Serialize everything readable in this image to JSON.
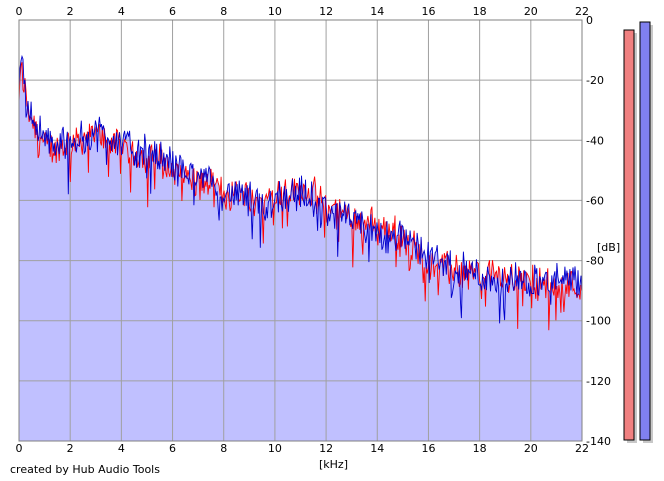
{
  "footer_text": "created by Hub Audio Tools",
  "chart_data": {
    "type": "line",
    "title": "",
    "xlabel": "[kHz]",
    "ylabel": "[dB]",
    "xlim": [
      0,
      22
    ],
    "ylim": [
      -140,
      0
    ],
    "x_ticks": [
      "0",
      "2",
      "4",
      "6",
      "8",
      "10",
      "12",
      "14",
      "16",
      "18",
      "20",
      "22"
    ],
    "y_ticks": [
      "0",
      "-20",
      "-40",
      "-60",
      "-80",
      "-100",
      "-120",
      "-140"
    ],
    "grid": true,
    "fill_color": "#c0c0ff",
    "series": [
      {
        "color": "#ff0000",
        "x": [
          0,
          0.1,
          0.2,
          0.3,
          0.5,
          0.7,
          1,
          1.5,
          2,
          2.5,
          3,
          3.5,
          4,
          4.5,
          5,
          5.5,
          6,
          6.5,
          7,
          7.5,
          8,
          8.5,
          9,
          9.5,
          10,
          10.5,
          11,
          11.5,
          12,
          12.5,
          13,
          13.5,
          14,
          14.5,
          15,
          15.5,
          16,
          16.5,
          17,
          17.5,
          18,
          18.5,
          19,
          19.5,
          20,
          20.5,
          21,
          21.5,
          22
        ],
        "y": [
          -25,
          -16,
          -22,
          -27,
          -33,
          -36,
          -42,
          -43,
          -41,
          -39,
          -38,
          -40,
          -42,
          -44,
          -45,
          -47,
          -50,
          -52,
          -54,
          -55,
          -58,
          -57,
          -59,
          -60,
          -58,
          -57,
          -56,
          -58,
          -62,
          -64,
          -66,
          -67,
          -69,
          -70,
          -73,
          -76,
          -79,
          -82,
          -83,
          -84,
          -84,
          -85,
          -86,
          -86,
          -87,
          -88,
          -88,
          -88,
          -89
        ]
      },
      {
        "color": "#0000cc",
        "x": [
          0,
          0.1,
          0.2,
          0.3,
          0.5,
          0.7,
          1,
          1.5,
          2,
          2.5,
          3,
          3.5,
          4,
          4.5,
          5,
          5.5,
          6,
          6.5,
          7,
          7.5,
          8,
          8.5,
          9,
          9.5,
          10,
          10.5,
          11,
          11.5,
          12,
          12.5,
          13,
          13.5,
          14,
          14.5,
          15,
          15.5,
          16,
          16.5,
          17,
          17.5,
          18,
          18.5,
          19,
          19.5,
          20,
          20.5,
          21,
          21.5,
          22
        ],
        "y": [
          -22,
          -13,
          -18,
          -25,
          -32,
          -35,
          -40,
          -42,
          -40,
          -38,
          -37,
          -38,
          -40,
          -43,
          -44,
          -46,
          -48,
          -50,
          -52,
          -54,
          -57,
          -58,
          -60,
          -63,
          -59,
          -58,
          -58,
          -60,
          -63,
          -65,
          -67,
          -69,
          -71,
          -71,
          -72,
          -75,
          -78,
          -81,
          -82,
          -84,
          -85,
          -86,
          -87,
          -86,
          -87,
          -87,
          -87,
          -87,
          -88
        ]
      }
    ]
  },
  "meters": [
    {
      "color": "#f08080",
      "level": 1
    },
    {
      "color": "#8080f0",
      "level": 1
    }
  ]
}
